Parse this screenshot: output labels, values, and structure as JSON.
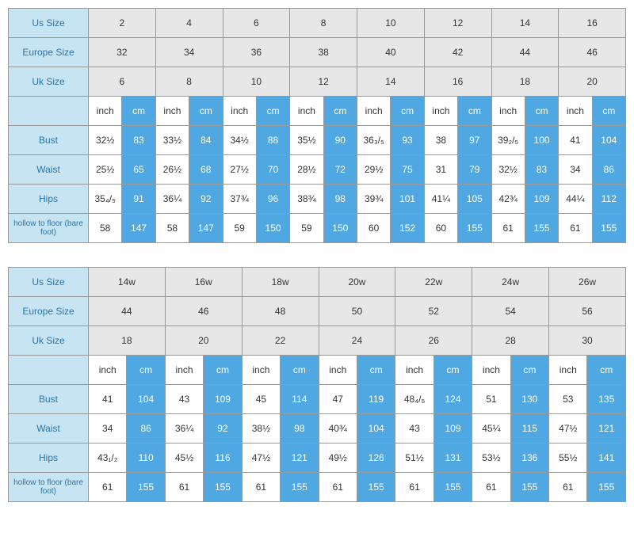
{
  "table1": {
    "labels": {
      "us": "Us Size",
      "europe": "Europe Size",
      "uk": "Uk Size",
      "bust": "Bust",
      "waist": "Waist",
      "hips": "Hips",
      "hollow": "hollow to floor (bare foot)",
      "inch": "inch",
      "cm": "cm"
    },
    "us": [
      "2",
      "4",
      "6",
      "8",
      "10",
      "12",
      "14",
      "16"
    ],
    "europe": [
      "32",
      "34",
      "36",
      "38",
      "40",
      "42",
      "44",
      "46"
    ],
    "uk": [
      "6",
      "8",
      "10",
      "12",
      "14",
      "16",
      "18",
      "20"
    ],
    "bust_in": [
      "32½",
      "33½",
      "34½",
      "35½",
      "36₃/₅",
      "38",
      "39₂/₅",
      "41"
    ],
    "bust_cm": [
      "83",
      "84",
      "88",
      "90",
      "93",
      "97",
      "100",
      "104"
    ],
    "waist_in": [
      "25½",
      "26½",
      "27½",
      "28½",
      "29½",
      "31",
      "32½",
      "34"
    ],
    "waist_cm": [
      "65",
      "68",
      "70",
      "72",
      "75",
      "79",
      "83",
      "86"
    ],
    "hips_in": [
      "35₄/₅",
      "36¼",
      "37¾",
      "38¾",
      "39¾",
      "41¼",
      "42¾",
      "44¼"
    ],
    "hips_cm": [
      "91",
      "92",
      "96",
      "98",
      "101",
      "105",
      "109",
      "112"
    ],
    "hollow_in": [
      "58",
      "58",
      "59",
      "59",
      "60",
      "60",
      "61",
      "61"
    ],
    "hollow_cm": [
      "147",
      "147",
      "150",
      "150",
      "152",
      "155",
      "155",
      "155"
    ]
  },
  "table2": {
    "labels": {
      "us": "Us Size",
      "europe": "Europe Size",
      "uk": "Uk Size",
      "bust": "Bust",
      "waist": "Waist",
      "hips": "Hips",
      "hollow": "hollow to floor (bare foot)",
      "inch": "inch",
      "cm": "cm"
    },
    "us": [
      "14w",
      "16w",
      "18w",
      "20w",
      "22w",
      "24w",
      "26w"
    ],
    "europe": [
      "44",
      "46",
      "48",
      "50",
      "52",
      "54",
      "56"
    ],
    "uk": [
      "18",
      "20",
      "22",
      "24",
      "26",
      "28",
      "30"
    ],
    "bust_in": [
      "41",
      "43",
      "45",
      "47",
      "48₄/₅",
      "51",
      "53"
    ],
    "bust_cm": [
      "104",
      "109",
      "114",
      "119",
      "124",
      "130",
      "135"
    ],
    "waist_in": [
      "34",
      "36¼",
      "38½",
      "40¾",
      "43",
      "45¼",
      "47½"
    ],
    "waist_cm": [
      "86",
      "92",
      "98",
      "104",
      "109",
      "115",
      "121"
    ],
    "hips_in": [
      "43₁/₂",
      "45½",
      "47½",
      "49½",
      "51½",
      "53½",
      "55½"
    ],
    "hips_cm": [
      "110",
      "116",
      "121",
      "126",
      "131",
      "136",
      "141"
    ],
    "hollow_in": [
      "61",
      "61",
      "61",
      "61",
      "61",
      "61",
      "61"
    ],
    "hollow_cm": [
      "155",
      "155",
      "155",
      "155",
      "155",
      "155",
      "155"
    ]
  },
  "colors": {
    "header_blue_bg": "#c7e4f2",
    "header_blue_fg": "#2a74a8",
    "header_gray_bg": "#e7e7e7",
    "cm_bg": "#4fa8e1",
    "cm_fg": "#ffffff",
    "border": "#999999"
  }
}
